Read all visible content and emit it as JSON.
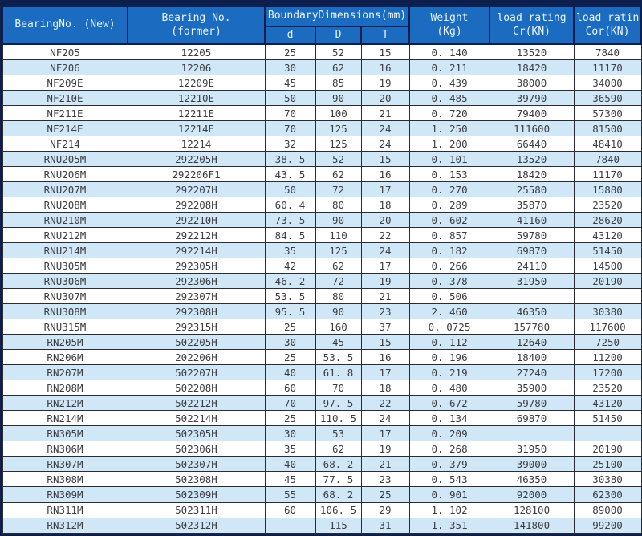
{
  "table": {
    "title": "bearing-specification-table",
    "header": {
      "bearing_new": "BearingNo. (New)",
      "bearing_former_line1": "Bearing No.",
      "bearing_former_line2": "(former)",
      "boundary_group": "BoundaryDimensions(mm)",
      "sub_d": "d",
      "sub_D": "D",
      "sub_T": "T",
      "weight_line1": "Weight",
      "weight_line2": "(Kg)",
      "cr_line1": "load rating",
      "cr_line2": "Cr(KN)",
      "cor_line1": "load rating",
      "cor_line2": "Cor(KN)"
    },
    "columns": [
      "BearingNo. (New)",
      "Bearing No. (former)",
      "d",
      "D",
      "T",
      "Weight (Kg)",
      "load rating Cr(KN)",
      "load rating Cor(KN)"
    ],
    "rows": [
      [
        "NF205",
        "12205",
        "25",
        "52",
        "15",
        "0. 140",
        "13520",
        "7840"
      ],
      [
        "NF206",
        "12206",
        "30",
        "62",
        "16",
        "0. 211",
        "18420",
        "11170"
      ],
      [
        "NF209E",
        "12209E",
        "45",
        "85",
        "19",
        "0. 439",
        "38000",
        "34000"
      ],
      [
        "NF210E",
        "12210E",
        "50",
        "90",
        "20",
        "0. 485",
        "39790",
        "36590"
      ],
      [
        "NF211E",
        "12211E",
        "70",
        "100",
        "21",
        "0. 720",
        "79400",
        "57300"
      ],
      [
        "NF214E",
        "12214E",
        "70",
        "125",
        "24",
        "1. 250",
        "111600",
        "81500"
      ],
      [
        "NF214",
        "12214",
        "32",
        "125",
        "24",
        "1. 200",
        "66440",
        "48410"
      ],
      [
        "RNU205M",
        "292205H",
        "38. 5",
        "52",
        "15",
        "0. 101",
        "13520",
        "7840"
      ],
      [
        "RNU206M",
        "292206F1",
        "43. 5",
        "62",
        "16",
        "0. 153",
        "18420",
        "11170"
      ],
      [
        "RNU207M",
        "292207H",
        "50",
        "72",
        "17",
        "0. 270",
        "25580",
        "15880"
      ],
      [
        "RNU208M",
        "292208H",
        "60. 4",
        "80",
        "18",
        "0. 289",
        "35870",
        "23520"
      ],
      [
        "RNU210M",
        "292210H",
        "73. 5",
        "90",
        "20",
        "0. 602",
        "41160",
        "28620"
      ],
      [
        "RNU212M",
        "292212H",
        "84. 5",
        "110",
        "22",
        "0. 857",
        "59780",
        "43120"
      ],
      [
        "RNU214M",
        "292214H",
        "35",
        "125",
        "24",
        "0. 182",
        "69870",
        "51450"
      ],
      [
        "RNU305M",
        "292305H",
        "42",
        "62",
        "17",
        "0. 266",
        "24110",
        "14500"
      ],
      [
        "RNU306M",
        "292306H",
        "46. 2",
        "72",
        "19",
        "0. 378",
        "31950",
        "20190"
      ],
      [
        "RNU307M",
        "292307H",
        "53. 5",
        "80",
        "21",
        "0. 506",
        "",
        ""
      ],
      [
        "RNU308M",
        "292308H",
        "95. 5",
        "90",
        "23",
        "2. 460",
        "46350",
        "30380"
      ],
      [
        "RNU315M",
        "292315H",
        "25",
        "160",
        "37",
        "0. 0725",
        "157780",
        "117600"
      ],
      [
        "RN205M",
        "502205H",
        "30",
        "45",
        "15",
        "0. 112",
        "12640",
        "7250"
      ],
      [
        "RN206M",
        "202206H",
        "25",
        "53. 5",
        "16",
        "0. 196",
        "18400",
        "11200"
      ],
      [
        "RN207M",
        "502207H",
        "40",
        "61. 8",
        "17",
        "0. 219",
        "27240",
        "17200"
      ],
      [
        "RN208M",
        "502208H",
        "60",
        "70",
        "18",
        "0. 480",
        "35900",
        "23520"
      ],
      [
        "RN212M",
        "502212H",
        "70",
        "97. 5",
        "22",
        "0. 672",
        "59780",
        "43120"
      ],
      [
        "RN214M",
        "502214H",
        "25",
        "110. 5",
        "24",
        "0. 134",
        "69870",
        "51450"
      ],
      [
        "RN305M",
        "502305H",
        "30",
        "53",
        "17",
        "0. 209",
        "",
        ""
      ],
      [
        "RN306M",
        "502306H",
        "35",
        "62",
        "19",
        "0. 268",
        "31950",
        "20190"
      ],
      [
        "RN307M",
        "502307H",
        "40",
        "68. 2",
        "21",
        "0. 379",
        "39000",
        "25100"
      ],
      [
        "RN308M",
        "502308H",
        "45",
        "77. 5",
        "23",
        "0. 543",
        "46350",
        "30380"
      ],
      [
        "RN309M",
        "502309H",
        "55",
        "68. 2",
        "25",
        "0. 901",
        "92000",
        "62300"
      ],
      [
        "RN311M",
        "502311H",
        "60",
        "106. 5",
        "29",
        "1. 102",
        "128100",
        "89000"
      ],
      [
        "RN312M",
        "502312H",
        "",
        "115",
        "31",
        "1. 351",
        "141800",
        "99200"
      ]
    ],
    "colors": {
      "header_bg": "#1b6cc0",
      "header_text": "#eaf4fd",
      "stripe_bg": "#cfe7f7",
      "row_bg": "#ffffff",
      "grid_line": "#2b2b33",
      "outer_border": "#0d1f4e",
      "body_text": "#3d3d42"
    }
  }
}
